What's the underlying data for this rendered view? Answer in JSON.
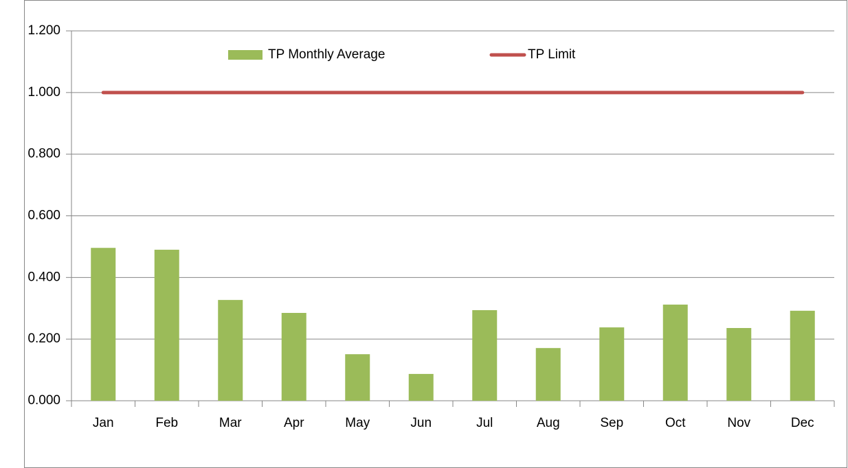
{
  "chart_data": {
    "type": "bar",
    "categories": [
      "Jan",
      "Feb",
      "Mar",
      "Apr",
      "May",
      "Jun",
      "Jul",
      "Aug",
      "Sep",
      "Oct",
      "Nov",
      "Dec"
    ],
    "series": [
      {
        "name": "TP Monthly Average",
        "type": "bar",
        "color": "#9bbb59",
        "values": [
          0.496,
          0.49,
          0.327,
          0.285,
          0.151,
          0.087,
          0.294,
          0.171,
          0.238,
          0.312,
          0.236,
          0.292
        ]
      },
      {
        "name": "TP Limit",
        "type": "line",
        "color": "#c0504d",
        "values": [
          1,
          1,
          1,
          1,
          1,
          1,
          1,
          1,
          1,
          1,
          1,
          1
        ]
      }
    ],
    "ylim": [
      0,
      1.2
    ],
    "yticks": [
      {
        "value": 0,
        "label": "0.000"
      },
      {
        "value": 0.2,
        "label": "0.200"
      },
      {
        "value": 0.4,
        "label": "0.400"
      },
      {
        "value": 0.6,
        "label": "0.600"
      },
      {
        "value": 0.8,
        "label": "0.800"
      },
      {
        "value": 1,
        "label": "1.000"
      },
      {
        "value": 1.2,
        "label": "1.200"
      }
    ],
    "grid": true,
    "legend": "top"
  }
}
